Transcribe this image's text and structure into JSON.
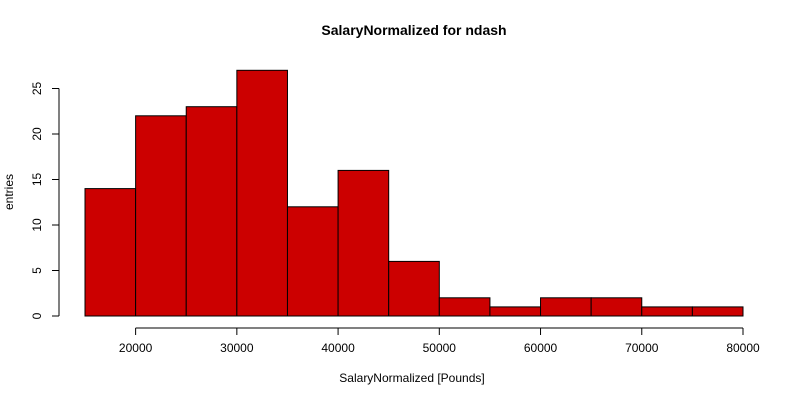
{
  "chart_data": {
    "type": "bar",
    "title": "SalaryNormalized for ndash",
    "xlabel": "SalaryNormalized [Pounds]",
    "ylabel": "entries",
    "bin_edges": [
      15000,
      20000,
      25000,
      30000,
      35000,
      40000,
      45000,
      50000,
      55000,
      60000,
      65000,
      70000,
      75000,
      80000
    ],
    "values": [
      14,
      22,
      23,
      27,
      12,
      16,
      6,
      2,
      1,
      2,
      2,
      1,
      1
    ],
    "xticks": [
      20000,
      30000,
      40000,
      50000,
      60000,
      70000,
      80000
    ],
    "yticks": [
      0,
      5,
      10,
      15,
      20,
      25
    ],
    "xlim": [
      15000,
      80000
    ],
    "ylim": [
      0,
      28
    ],
    "grid": false,
    "bar_color": "#cc0000"
  }
}
